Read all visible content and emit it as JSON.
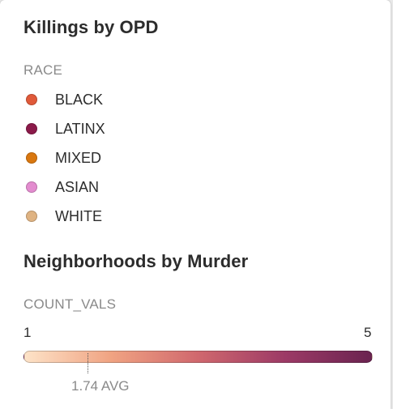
{
  "legend1": {
    "title": "Killings by OPD",
    "field_label": "RACE",
    "items": [
      {
        "label": "BLACK",
        "color": "#e05a3a"
      },
      {
        "label": "LATINX",
        "color": "#8b1a4a"
      },
      {
        "label": "MIXED",
        "color": "#d9770f"
      },
      {
        "label": "ASIAN",
        "color": "#e38ccf"
      },
      {
        "label": "WHITE",
        "color": "#dfb382"
      }
    ]
  },
  "legend2": {
    "title": "Neighborhoods by Murder",
    "field_label": "COUNT_VALS",
    "min_label": "1",
    "max_label": "5",
    "avg_label": "1.74 AVG",
    "gradient_colors": [
      "#fde3c8",
      "#f0a382",
      "#d0686e",
      "#9c3a66",
      "#6a2350"
    ]
  }
}
